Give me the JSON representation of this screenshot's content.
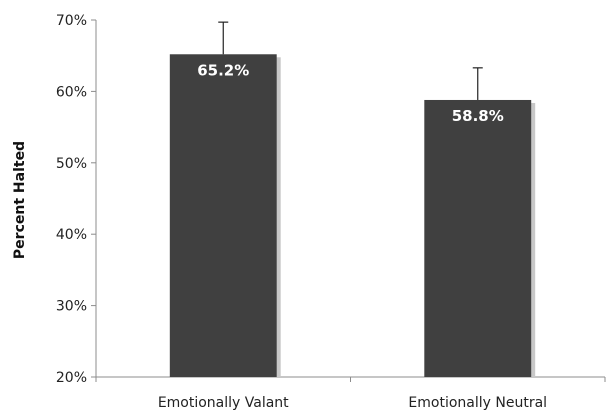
{
  "chart_data": {
    "type": "bar",
    "categories": [
      "Emotionally Valant",
      "Emotionally Neutral"
    ],
    "values": [
      65.2,
      58.8
    ],
    "error_upper": [
      69.7,
      63.3
    ],
    "data_labels": [
      "65.2%",
      "58.8%"
    ],
    "ylabel": "Percent Halted",
    "ylim": [
      20,
      70
    ],
    "yticks": [
      20,
      30,
      40,
      50,
      60,
      70
    ],
    "ytick_labels": [
      "20%",
      "30%",
      "40%",
      "50%",
      "60%",
      "70%"
    ],
    "grid": false,
    "legend": "none",
    "colors": {
      "bar": "#404040",
      "bar_shadow": "#c8c8c8",
      "axis": "#8c8c8c",
      "error_bar": "#222222"
    }
  }
}
